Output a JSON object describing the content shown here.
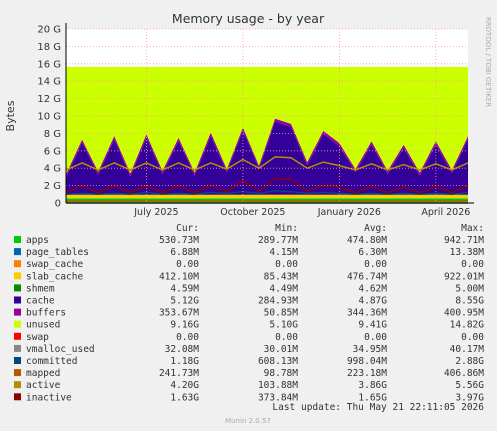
{
  "chart_data": {
    "type": "area",
    "title": "Memory usage - by year",
    "y_label": "Bytes",
    "side_text": "RRDTOOL / TOBI OETIKER",
    "footer": "Last update: Thu May 21 22:11:05 2026",
    "version": "Munin 2.0.57",
    "legend_headers": [
      "Cur:",
      "Min:",
      "Avg:",
      "Max:"
    ],
    "ylim": [
      0,
      20
    ],
    "yticks": [
      0,
      {
        "value": 2,
        "label": "2 G"
      },
      {
        "value": 4,
        "label": "4 G"
      },
      {
        "value": 6,
        "label": "6 G"
      },
      {
        "value": 8,
        "label": "8 G"
      },
      {
        "value": 10,
        "label": "10 G"
      },
      {
        "value": 12,
        "label": "12 G"
      },
      {
        "value": 14,
        "label": "14 G"
      },
      {
        "value": 16,
        "label": "16 G"
      },
      {
        "value": 18,
        "label": "18 G"
      },
      {
        "value": 20,
        "label": "20 G"
      }
    ],
    "grid": true,
    "categories": [
      null,
      null,
      null,
      null,
      null,
      "July 2025",
      null,
      null,
      null,
      null,
      null,
      "October 2025",
      null,
      null,
      null,
      null,
      null,
      "January 2026",
      null,
      null,
      null,
      null,
      null,
      "April 2026",
      null,
      null
    ],
    "series": [
      {
        "name": "apps",
        "color": "#00cc00",
        "style": "area",
        "stats": [
          "530.73M",
          "289.77M",
          "474.80M",
          "942.71M"
        ],
        "values": [
          0.53,
          0.53,
          0.53,
          0.53,
          0.53,
          0.53,
          0.53,
          0.53,
          0.53,
          0.53,
          0.53,
          0.53,
          0.53,
          0.53,
          0.53,
          0.53,
          0.53,
          0.53,
          0.53,
          0.53,
          0.53,
          0.53,
          0.53,
          0.53,
          0.53,
          0.53
        ]
      },
      {
        "name": "page_tables",
        "color": "#0066b3",
        "style": "area",
        "stats": [
          "6.88M",
          "4.15M",
          "6.30M",
          "13.38M"
        ],
        "values": [
          0.007,
          0.007,
          0.007,
          0.007,
          0.007,
          0.007,
          0.007,
          0.007,
          0.007,
          0.007,
          0.007,
          0.007,
          0.007,
          0.007,
          0.007,
          0.007,
          0.007,
          0.007,
          0.007,
          0.007,
          0.007,
          0.007,
          0.007,
          0.007,
          0.007,
          0.007
        ]
      },
      {
        "name": "swap_cache",
        "color": "#ff8000",
        "style": "area",
        "stats": [
          "0.00",
          "0.00",
          "0.00",
          "0.00"
        ],
        "values": [
          0,
          0,
          0,
          0,
          0,
          0,
          0,
          0,
          0,
          0,
          0,
          0,
          0,
          0,
          0,
          0,
          0,
          0,
          0,
          0,
          0,
          0,
          0,
          0,
          0,
          0
        ]
      },
      {
        "name": "slab_cache",
        "color": "#ffcc00",
        "style": "area",
        "stats": [
          "412.10M",
          "85.43M",
          "476.74M",
          "922.01M"
        ],
        "values": [
          0.41,
          0.41,
          0.41,
          0.41,
          0.41,
          0.41,
          0.41,
          0.41,
          0.41,
          0.41,
          0.41,
          0.41,
          0.41,
          0.41,
          0.41,
          0.41,
          0.41,
          0.41,
          0.41,
          0.41,
          0.41,
          0.41,
          0.41,
          0.41,
          0.41,
          0.41
        ]
      },
      {
        "name": "shmem",
        "color": "#008f00",
        "style": "line",
        "stats": [
          "4.59M",
          "4.49M",
          "4.62M",
          "5.00M"
        ],
        "values": [
          0.005,
          0.005,
          0.005,
          0.005,
          0.005,
          0.005,
          0.005,
          0.005,
          0.005,
          0.005,
          0.005,
          0.005,
          0.005,
          0.005,
          0.005,
          0.005,
          0.005,
          0.005,
          0.005,
          0.005,
          0.005,
          0.005,
          0.005,
          0.005,
          0.005,
          0.005
        ]
      },
      {
        "name": "cache",
        "color": "#330099",
        "style": "area",
        "stats": [
          "5.12G",
          "284.93M",
          "4.87G",
          "8.55G"
        ],
        "values": [
          2.0,
          6.0,
          2.3,
          6.4,
          2.1,
          6.6,
          2.4,
          6.2,
          2.2,
          6.8,
          2.6,
          7.4,
          3.0,
          8.4,
          7.8,
          3.4,
          7.0,
          5.6,
          2.6,
          5.8,
          2.4,
          5.4,
          2.2,
          5.8,
          2.5,
          6.4
        ]
      },
      {
        "name": "buffers",
        "color": "#990099",
        "style": "area",
        "stats": [
          "353.67M",
          "50.85M",
          "344.36M",
          "400.95M"
        ],
        "values": [
          0.35,
          0.35,
          0.35,
          0.35,
          0.35,
          0.35,
          0.35,
          0.35,
          0.35,
          0.35,
          0.35,
          0.35,
          0.35,
          0.35,
          0.35,
          0.35,
          0.35,
          0.35,
          0.35,
          0.35,
          0.35,
          0.35,
          0.35,
          0.35,
          0.35,
          0.35
        ]
      },
      {
        "name": "unused",
        "color": "#ccff00",
        "style": "area",
        "stats": [
          "9.16G",
          "5.10G",
          "9.41G",
          "14.82G"
        ],
        "values": [
          12.35,
          8.35,
          12.05,
          7.95,
          12.25,
          7.75,
          11.95,
          8.15,
          12.15,
          7.55,
          11.75,
          6.95,
          11.35,
          5.95,
          6.55,
          10.95,
          7.35,
          8.75,
          11.75,
          8.55,
          11.95,
          8.95,
          12.15,
          8.55,
          11.85,
          7.95
        ]
      },
      {
        "name": "swap",
        "color": "#ff0000",
        "style": "area",
        "stats": [
          "0.00",
          "0.00",
          "0.00",
          "0.00"
        ],
        "values": [
          0,
          0,
          0,
          0,
          0,
          0,
          0,
          0,
          0,
          0,
          0,
          0,
          0,
          0,
          0,
          0,
          0,
          0,
          0,
          0,
          0,
          0,
          0,
          0,
          0,
          0
        ]
      },
      {
        "name": "vmalloc_used",
        "color": "#888888",
        "style": "line",
        "stats": [
          "32.08M",
          "30.01M",
          "34.95M",
          "40.17M"
        ],
        "values": [
          0.03,
          0.03,
          0.03,
          0.03,
          0.03,
          0.03,
          0.03,
          0.03,
          0.03,
          0.03,
          0.03,
          0.03,
          0.03,
          0.03,
          0.03,
          0.03,
          0.03,
          0.03,
          0.03,
          0.03,
          0.03,
          0.03,
          0.03,
          0.03,
          0.03,
          0.03
        ]
      },
      {
        "name": "committed",
        "color": "#00487d",
        "style": "line",
        "stats": [
          "1.18G",
          "608.13M",
          "998.04M",
          "2.88G"
        ],
        "values": [
          1.0,
          1.1,
          1.0,
          1.1,
          1.0,
          1.2,
          1.0,
          1.1,
          1.0,
          1.2,
          1.1,
          1.3,
          1.1,
          1.4,
          1.3,
          1.1,
          1.2,
          1.1,
          1.0,
          1.1,
          1.0,
          1.1,
          1.0,
          1.1,
          1.0,
          1.2
        ]
      },
      {
        "name": "mapped",
        "color": "#b35a00",
        "style": "line",
        "stats": [
          "241.73M",
          "98.78M",
          "223.18M",
          "406.86M"
        ],
        "values": [
          0.24,
          0.24,
          0.24,
          0.24,
          0.24,
          0.24,
          0.24,
          0.24,
          0.24,
          0.24,
          0.24,
          0.24,
          0.24,
          0.24,
          0.24,
          0.24,
          0.24,
          0.24,
          0.24,
          0.24,
          0.24,
          0.24,
          0.24,
          0.24,
          0.24,
          0.24
        ]
      },
      {
        "name": "active",
        "color": "#b38f00",
        "style": "line",
        "stats": [
          "4.20G",
          "103.88M",
          "3.86G",
          "5.56G"
        ],
        "values": [
          3.8,
          4.6,
          3.8,
          4.6,
          3.8,
          4.6,
          3.8,
          4.6,
          3.8,
          4.6,
          3.9,
          5.0,
          4.0,
          5.3,
          5.2,
          4.0,
          4.7,
          4.3,
          3.8,
          4.5,
          3.8,
          4.4,
          3.8,
          4.5,
          3.8,
          4.6
        ]
      },
      {
        "name": "inactive",
        "color": "#8f0000",
        "style": "line",
        "stats": [
          "1.63G",
          "373.84M",
          "1.65G",
          "3.97G"
        ],
        "values": [
          1.2,
          2.0,
          1.2,
          2.0,
          1.2,
          2.0,
          1.2,
          2.0,
          1.2,
          2.0,
          1.3,
          2.6,
          1.4,
          2.8,
          2.7,
          1.4,
          2.0,
          1.8,
          1.2,
          1.9,
          1.2,
          1.8,
          1.2,
          1.9,
          1.2,
          2.0
        ]
      }
    ]
  }
}
